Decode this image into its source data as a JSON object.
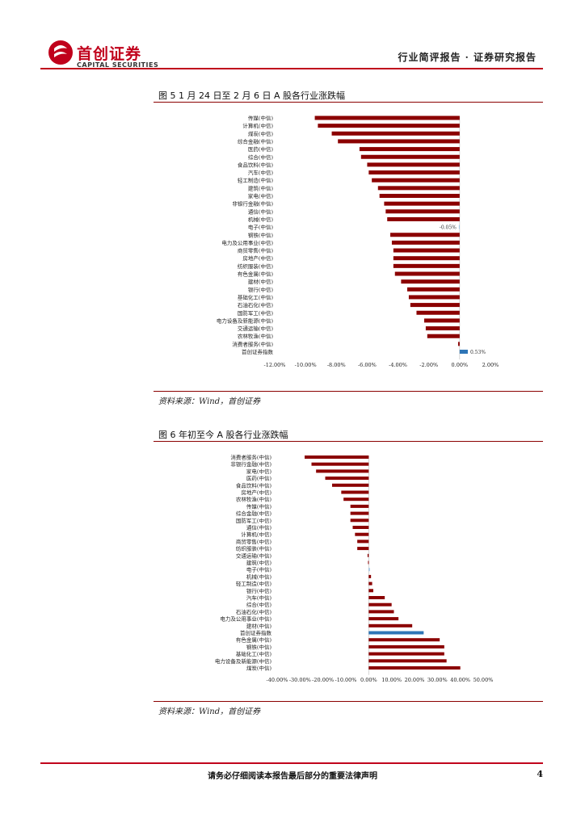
{
  "header": {
    "logo_cn": "首创证券",
    "logo_en": "CAPITAL SECURITIES",
    "title": "行业简评报告 · 证券研究报告"
  },
  "figure5": {
    "title": "图 5 1 月 24 日至 2 月 6 日 A 股各行业涨跌幅",
    "source": "资料来源：Wind，首创证券"
  },
  "figure6": {
    "title": "图 6 年初至今 A 股各行业涨跌幅",
    "source": "资料来源：Wind，首创证券"
  },
  "footer": {
    "disclaimer": "请务必仔细阅读本报告最后部分的重要法律声明",
    "page": "4"
  },
  "colors": {
    "bar": "#8b0000",
    "highlight_light": "#9dc3e6",
    "highlight_dark": "#2e75b6",
    "brand": "#c0001b"
  },
  "chart_data": [
    {
      "type": "bar",
      "orientation": "horizontal",
      "title": "1 月 24 日至 2 月 6 日 A 股各行业涨跌幅",
      "categories": [
        "传媒(中信)",
        "计算机(中信)",
        "煤炭(中信)",
        "综合金融(中信)",
        "医药(中信)",
        "综合(中信)",
        "食品饮料(中信)",
        "汽车(中信)",
        "轻工制造(中信)",
        "建筑(中信)",
        "家电(中信)",
        "非银行金融(中信)",
        "通信(中信)",
        "机械(中信)",
        "电子(中信)",
        "钢铁(中信)",
        "电力及公用事业(中信)",
        "商贸零售(中信)",
        "房地产(中信)",
        "纺织服装(中信)",
        "有色金属(中信)",
        "建材(中信)",
        "银行(中信)",
        "基础化工(中信)",
        "石油石化(中信)",
        "国防军工(中信)",
        "电力设备及新能源(中信)",
        "交通运输(中信)",
        "农林牧渔(中信)",
        "消费者服务(中信)",
        "首创证券指数"
      ],
      "values": [
        -9.4,
        -9.2,
        -8.3,
        -7.9,
        -6.5,
        -6.4,
        -6.0,
        -5.9,
        -5.7,
        -5.3,
        -5.2,
        -4.9,
        -4.8,
        -4.7,
        -0.05,
        -4.5,
        -4.4,
        -4.3,
        -4.3,
        -4.3,
        -4.2,
        -3.8,
        -3.4,
        -3.3,
        -3.2,
        -2.8,
        -2.3,
        -2.2,
        -2.1,
        -0.1,
        0.53
      ],
      "highlight": {
        "电子(中信)": "light",
        "首创证券指数": "dark"
      },
      "data_labels": {
        "电子(中信)": "-0.05%",
        "首创证券指数": "0.53%"
      },
      "xticks": [
        "-12.00%",
        "-10.00%",
        "-8.00%",
        "-6.00%",
        "-4.00%",
        "-2.00%",
        "0.00%",
        "2.00%"
      ],
      "xlim": [
        -12,
        2
      ]
    },
    {
      "type": "bar",
      "orientation": "horizontal",
      "title": "年初至今 A 股各行业涨跌幅",
      "categories": [
        "消费者服务(中信)",
        "非银行金融(中信)",
        "家电(中信)",
        "医药(中信)",
        "食品饮料(中信)",
        "房地产(中信)",
        "农林牧渔(中信)",
        "传媒(中信)",
        "综合金融(中信)",
        "国防军工(中信)",
        "通信(中信)",
        "计算机(中信)",
        "商贸零售(中信)",
        "纺织服装(中信)",
        "交通运输(中信)",
        "建筑(中信)",
        "电子(中信)",
        "机械(中信)",
        "轻工制造(中信)",
        "银行(中信)",
        "汽车(中信)",
        "综合(中信)",
        "石油石化(中信)",
        "电力及公用事业(中信)",
        "建材(中信)",
        "首创证券指数",
        "有色金属(中信)",
        "钢铁(中信)",
        "基础化工(中信)",
        "电力设备及新能源(中信)",
        "煤炭(中信)"
      ],
      "values": [
        -28,
        -25,
        -23,
        -19,
        -16,
        -12,
        -11,
        -8,
        -8,
        -8,
        -7,
        -6,
        -5,
        -5,
        -0.5,
        -0.3,
        0.5,
        1,
        1.5,
        2,
        7,
        10,
        11,
        13,
        19,
        24,
        31,
        33,
        33,
        34,
        40
      ],
      "highlight": {
        "电子(中信)": "light",
        "首创证券指数": "dark"
      },
      "xticks": [
        "-40.00%",
        "-30.00%",
        "-20.00%",
        "-10.00%",
        "0.00%",
        "10.00%",
        "20.00%",
        "30.00%",
        "40.00%",
        "50.00%"
      ],
      "xlim": [
        -40,
        50
      ]
    }
  ]
}
